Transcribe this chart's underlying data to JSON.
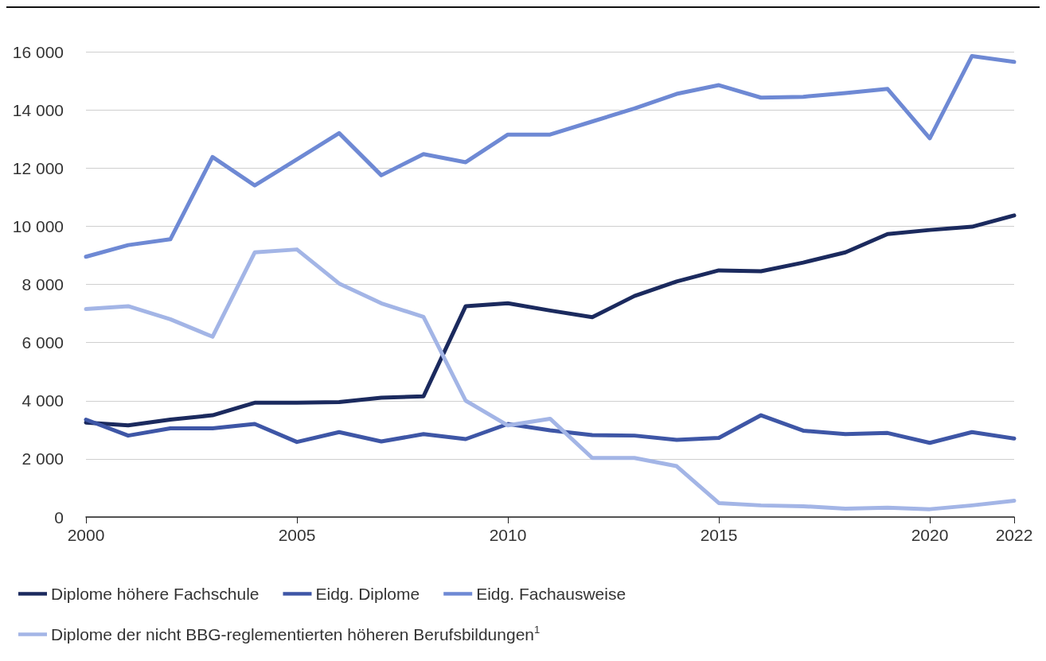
{
  "chart_data": {
    "type": "line",
    "x": [
      2000,
      2001,
      2002,
      2003,
      2004,
      2005,
      2006,
      2007,
      2008,
      2009,
      2010,
      2011,
      2012,
      2013,
      2014,
      2015,
      2016,
      2017,
      2018,
      2019,
      2020,
      2021,
      2022
    ],
    "series": [
      {
        "name": "Diplome höhere Fachschule",
        "color": "#1b2a5e",
        "values": [
          3250,
          3150,
          3350,
          3500,
          3930,
          3930,
          3950,
          4100,
          4150,
          7250,
          7350,
          7100,
          6870,
          7600,
          8100,
          8480,
          8450,
          8750,
          9100,
          9730,
          9870,
          9980,
          10370
        ]
      },
      {
        "name": "Eidg. Diplome",
        "color": "#3e56a6",
        "values": [
          3350,
          2800,
          3050,
          3050,
          3200,
          2580,
          2920,
          2600,
          2850,
          2680,
          3200,
          2980,
          2820,
          2800,
          2650,
          2720,
          3500,
          2970,
          2850,
          2890,
          2550,
          2920,
          2700
        ]
      },
      {
        "name": "Eidg. Fachausweise",
        "color": "#6e89d4",
        "values": [
          8950,
          9350,
          9550,
          12380,
          11400,
          12300,
          13200,
          11750,
          12480,
          12200,
          13150,
          13150,
          13600,
          14050,
          14550,
          14850,
          14420,
          14450,
          14580,
          14720,
          13020,
          15850,
          15650
        ]
      },
      {
        "name": "Diplome der nicht BBG-reglementierten höheren Berufsbildungen$^{1}$",
        "color": "#a3b5e6",
        "values": [
          7150,
          7250,
          6800,
          6200,
          9100,
          9200,
          8030,
          7350,
          6880,
          4000,
          3150,
          3380,
          2030,
          2030,
          1750,
          480,
          400,
          370,
          290,
          320,
          270,
          400,
          560
        ]
      }
    ],
    "xlim": [
      2000,
      2022
    ],
    "xticks": [
      2000,
      2005,
      2010,
      2015,
      2020,
      2022
    ],
    "ylim": [
      0,
      16000
    ],
    "yticks": [
      0,
      {
        "value": 2000,
        "label": "2 000"
      },
      {
        "value": 4000,
        "label": "4 000"
      },
      {
        "value": 6000,
        "label": "6 000"
      },
      {
        "value": 8000,
        "label": "8 000"
      },
      {
        "value": 10000,
        "label": "10 000"
      },
      {
        "value": 12000,
        "label": "12 000"
      },
      {
        "value": 14000,
        "label": "14 000"
      },
      {
        "value": 16000,
        "label": "16 000"
      }
    ],
    "grid": "y",
    "legend": "bottom",
    "marker": "none",
    "line_style": "solid"
  }
}
